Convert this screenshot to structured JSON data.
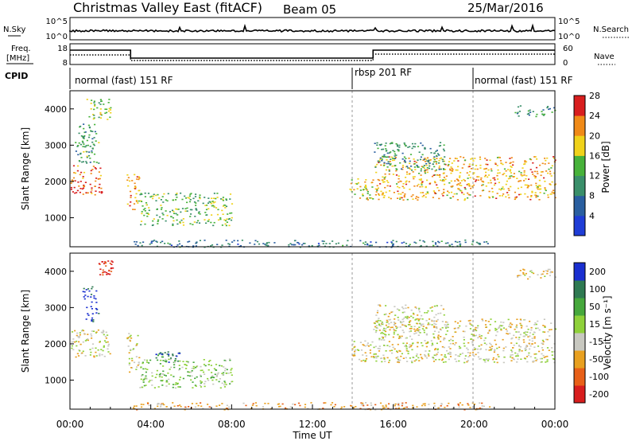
{
  "header": {
    "title": "Christmas Valley East (fitACF)",
    "beam": "Beam 05",
    "date": "25/Mar/2016"
  },
  "strips": {
    "nsky_label": "N.Sky",
    "nsky_ticks": [
      "10^5",
      "10^0"
    ],
    "nsearch_label": "N.Search",
    "nsearch_ticks": [
      "10^5",
      "10^0"
    ],
    "freq_label_1": "Freq.",
    "freq_label_2": "[MHz]",
    "freq_ticks": [
      "18",
      "8"
    ],
    "nave_label": "Nave",
    "nave_ticks": [
      "60",
      "0"
    ],
    "cpid_label": "CPID",
    "cpid_segments": [
      {
        "label": "normal (fast) 151 RF",
        "start_hour": 0,
        "end_hour": 14
      },
      {
        "label": "rbsp 201 RF",
        "start_hour": 14,
        "end_hour": 20
      },
      {
        "label": "normal (fast)  151 RF",
        "start_hour": 20,
        "end_hour": 24
      }
    ]
  },
  "chart_data": [
    {
      "type": "heatmap",
      "ylabel": "Slant Range [km]",
      "xlim_hours": [
        0,
        24
      ],
      "ylim": [
        200,
        4500
      ],
      "y_ticks": [
        1000,
        2000,
        3000,
        4000
      ],
      "colorbar_label": "Power [dB]",
      "colorbar_ticks": [
        "4",
        "8",
        "12",
        "16",
        "20",
        "24",
        "28"
      ],
      "colorbar_colors": [
        "#1f3dd6",
        "#2a5fa0",
        "#3a8f6a",
        "#47b23a",
        "#f0d21a",
        "#f08a17",
        "#d81e1e"
      ],
      "grid": "vertical dashed at 14:00 and 20:00",
      "echo_regions": [
        {
          "t0": 0.0,
          "t1": 1.6,
          "r0": 1650,
          "r1": 2450,
          "level": 5.5
        },
        {
          "t0": 0.2,
          "t1": 1.4,
          "r0": 2500,
          "r1": 3600,
          "level": 2.5
        },
        {
          "t0": 0.8,
          "t1": 2.0,
          "r0": 3700,
          "r1": 4300,
          "level": 3.5
        },
        {
          "t0": 2.8,
          "t1": 3.4,
          "r0": 1200,
          "r1": 2300,
          "level": 4.5
        },
        {
          "t0": 3.4,
          "t1": 8.0,
          "r0": 800,
          "r1": 1700,
          "level": 3.0
        },
        {
          "t0": 13.8,
          "t1": 15.0,
          "r0": 1500,
          "r1": 2100,
          "level": 4.0
        },
        {
          "t0": 15.0,
          "t1": 24.0,
          "r0": 1500,
          "r1": 2700,
          "level": 4.5
        },
        {
          "t0": 15.0,
          "t1": 18.5,
          "r0": 2300,
          "r1": 3100,
          "level": 2.0
        },
        {
          "t0": 3.0,
          "t1": 21.0,
          "r0": 200,
          "r1": 400,
          "level": 1.5
        },
        {
          "t0": 22.0,
          "t1": 24.0,
          "r0": 3800,
          "r1": 4100,
          "level": 2.0
        }
      ]
    },
    {
      "type": "heatmap",
      "ylabel": "Slant Range [km]",
      "xlabel": "Time UT",
      "x_ticks": [
        "00:00",
        "04:00",
        "08:00",
        "12:00",
        "16:00",
        "20:00",
        "00:00"
      ],
      "xlim_hours": [
        0,
        24
      ],
      "ylim": [
        200,
        4500
      ],
      "y_ticks": [
        1000,
        2000,
        3000,
        4000
      ],
      "colorbar_label": "Velocity [m s⁻¹]",
      "colorbar_ticks": [
        "200",
        "100",
        "50",
        "15",
        "-15",
        "-50",
        "-100",
        "-200"
      ],
      "colorbar_colors": [
        "#1a2fd0",
        "#2f7a52",
        "#46a83c",
        "#8fd13a",
        "#c8c8c0",
        "#e8a020",
        "#e86018",
        "#d81e1e"
      ],
      "grid": "vertical dashed at 14:00 and 20:00",
      "echo_regions": [
        {
          "t0": 0.0,
          "t1": 2.0,
          "r0": 1650,
          "r1": 2400,
          "level": 4
        },
        {
          "t0": 0.6,
          "t1": 1.4,
          "r0": 2600,
          "r1": 3600,
          "level": 0
        },
        {
          "t0": 1.4,
          "t1": 2.1,
          "r0": 3900,
          "r1": 4300,
          "level": 7
        },
        {
          "t0": 2.8,
          "t1": 3.4,
          "r0": 1200,
          "r1": 2300,
          "level": 4
        },
        {
          "t0": 3.4,
          "t1": 8.0,
          "r0": 800,
          "r1": 1600,
          "level": 3
        },
        {
          "t0": 4.2,
          "t1": 5.4,
          "r0": 1500,
          "r1": 1800,
          "level": 1
        },
        {
          "t0": 13.8,
          "t1": 15.0,
          "r0": 1500,
          "r1": 2100,
          "level": 4
        },
        {
          "t0": 15.0,
          "t1": 24.0,
          "r0": 1500,
          "r1": 2700,
          "level": 4
        },
        {
          "t0": 15.0,
          "t1": 18.5,
          "r0": 2300,
          "r1": 3100,
          "level": 4
        },
        {
          "t0": 3.0,
          "t1": 21.0,
          "r0": 200,
          "r1": 400,
          "level": 5
        },
        {
          "t0": 22.0,
          "t1": 24.0,
          "r0": 3800,
          "r1": 4100,
          "level": 4
        }
      ]
    }
  ]
}
